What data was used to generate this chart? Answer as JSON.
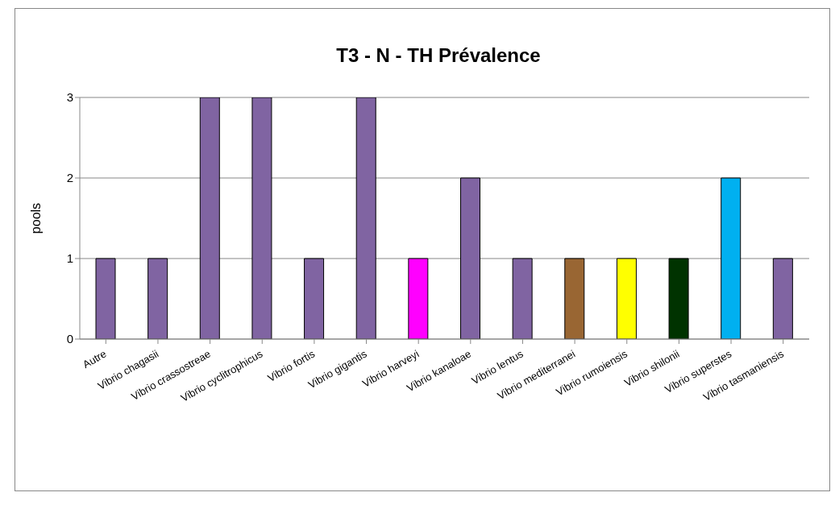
{
  "chart_data": {
    "type": "bar",
    "title": "T3 - N - TH Prévalence",
    "ylabel": "pools",
    "categories": [
      "Autre",
      "Vibrio chagasii",
      "Vibrio crassostreae",
      "Vibrio cyclitrophicus",
      "Vibrio fortis",
      "Vibrio gigantis",
      "Vibrio harveyi",
      "Vibrio kanaloae",
      "Vibrio lentus",
      "Vibrio mediterranei",
      "Vibrio rumoiensis",
      "Vibrio shilonii",
      "Vibrio superstes",
      "Vibrio tasmaniensis"
    ],
    "values": [
      1,
      1,
      3,
      3,
      1,
      3,
      1,
      2,
      1,
      1,
      1,
      1,
      2,
      1
    ],
    "colors": [
      "#8064a2",
      "#8064a2",
      "#8064a2",
      "#8064a2",
      "#8064a2",
      "#8064a2",
      "#ff00ff",
      "#8064a2",
      "#8064a2",
      "#996633",
      "#ffff00",
      "#003300",
      "#00b0f0",
      "#8064a2"
    ],
    "ylim": [
      0,
      3
    ],
    "yticks": [
      0,
      1,
      2,
      3
    ],
    "grid": "y",
    "legend": false
  }
}
